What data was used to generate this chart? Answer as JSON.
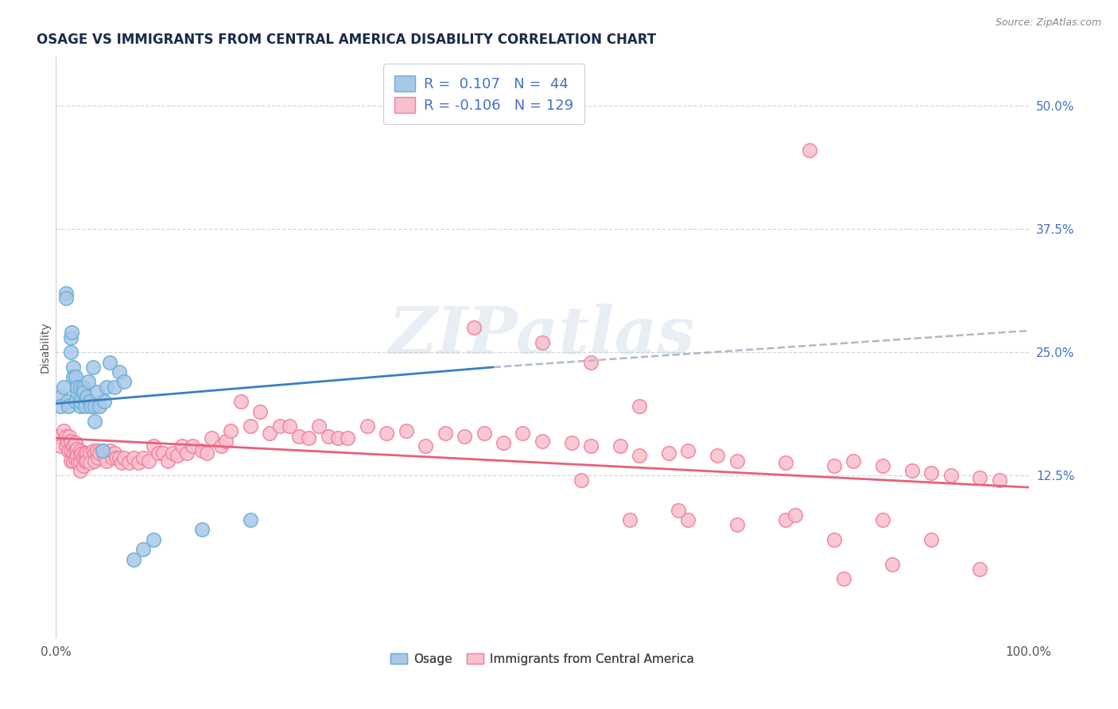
{
  "title": "OSAGE VS IMMIGRANTS FROM CENTRAL AMERICA DISABILITY CORRELATION CHART",
  "source_text": "Source: ZipAtlas.com",
  "ylabel": "Disability",
  "watermark_text": "ZIPatlas",
  "r1_label": "R =  0.107   N =  44",
  "r2_label": "R = -0.106   N = 129",
  "osage_legend": "Osage",
  "immigrant_legend": "Immigrants from Central America",
  "osage_color": "#a8c8e8",
  "osage_edge_color": "#6aaed6",
  "immigrant_color": "#f8c0cc",
  "immigrant_edge_color": "#f080a0",
  "osage_line_color": "#3a7fc1",
  "immigrant_line_color": "#e8607a",
  "dashed_line_color": "#b0b8c8",
  "grid_color": "#d0d8e0",
  "ytick_color": "#4472c4",
  "background_color": "#ffffff",
  "xlim": [
    0.0,
    1.0
  ],
  "ylim": [
    -0.04,
    0.55
  ],
  "ytick_values": [
    0.125,
    0.25,
    0.375,
    0.5
  ],
  "ytick_labels": [
    "12.5%",
    "25.0%",
    "37.5%",
    "50.0%"
  ],
  "xtick_values": [
    0.0,
    1.0
  ],
  "xtick_labels": [
    "0.0%",
    "100.0%"
  ],
  "osage_trend": [
    0.0,
    0.45
  ],
  "osage_trend_y": [
    0.198,
    0.235
  ],
  "dashed_trend": [
    0.45,
    1.0
  ],
  "dashed_trend_y": [
    0.235,
    0.272
  ],
  "immigrant_trend": [
    0.0,
    1.0
  ],
  "immigrant_trend_y": [
    0.163,
    0.113
  ],
  "title_fontsize": 12,
  "source_fontsize": 9,
  "tick_fontsize": 11,
  "legend_fontsize": 13,
  "ylabel_fontsize": 10,
  "watermark_fontsize": 60,
  "watermark_color": "#c0d0e4",
  "watermark_alpha": 0.35,
  "osage_x": [
    0.005,
    0.005,
    0.008,
    0.01,
    0.01,
    0.012,
    0.013,
    0.015,
    0.015,
    0.016,
    0.018,
    0.018,
    0.02,
    0.02,
    0.022,
    0.022,
    0.025,
    0.025,
    0.025,
    0.028,
    0.028,
    0.03,
    0.03,
    0.032,
    0.033,
    0.035,
    0.036,
    0.038,
    0.04,
    0.04,
    0.042,
    0.045,
    0.048,
    0.05,
    0.052,
    0.055,
    0.06,
    0.065,
    0.07,
    0.08,
    0.09,
    0.1,
    0.15,
    0.2
  ],
  "osage_y": [
    0.205,
    0.195,
    0.215,
    0.31,
    0.305,
    0.2,
    0.195,
    0.265,
    0.25,
    0.27,
    0.235,
    0.225,
    0.2,
    0.225,
    0.21,
    0.215,
    0.195,
    0.2,
    0.215,
    0.215,
    0.21,
    0.2,
    0.195,
    0.205,
    0.22,
    0.2,
    0.195,
    0.235,
    0.18,
    0.195,
    0.21,
    0.195,
    0.15,
    0.2,
    0.215,
    0.24,
    0.215,
    0.23,
    0.22,
    0.04,
    0.05,
    0.06,
    0.07,
    0.08
  ],
  "immigrant_x": [
    0.003,
    0.005,
    0.008,
    0.01,
    0.01,
    0.012,
    0.013,
    0.014,
    0.015,
    0.015,
    0.015,
    0.018,
    0.018,
    0.018,
    0.02,
    0.02,
    0.02,
    0.022,
    0.022,
    0.023,
    0.025,
    0.025,
    0.025,
    0.025,
    0.027,
    0.028,
    0.028,
    0.03,
    0.03,
    0.032,
    0.032,
    0.035,
    0.035,
    0.038,
    0.04,
    0.04,
    0.042,
    0.043,
    0.045,
    0.048,
    0.05,
    0.052,
    0.055,
    0.058,
    0.06,
    0.062,
    0.065,
    0.068,
    0.07,
    0.075,
    0.08,
    0.085,
    0.09,
    0.095,
    0.1,
    0.105,
    0.11,
    0.115,
    0.12,
    0.125,
    0.13,
    0.135,
    0.14,
    0.15,
    0.155,
    0.16,
    0.17,
    0.175,
    0.18,
    0.19,
    0.2,
    0.21,
    0.22,
    0.23,
    0.24,
    0.25,
    0.26,
    0.27,
    0.28,
    0.29,
    0.3,
    0.32,
    0.34,
    0.36,
    0.38,
    0.4,
    0.42,
    0.44,
    0.46,
    0.48,
    0.5,
    0.53,
    0.55,
    0.58,
    0.6,
    0.63,
    0.65,
    0.68,
    0.7,
    0.75,
    0.8,
    0.82,
    0.85,
    0.88,
    0.9,
    0.92,
    0.95,
    0.97,
    0.43,
    0.5,
    0.55,
    0.6,
    0.65,
    0.7,
    0.75,
    0.8,
    0.85,
    0.9,
    0.95,
    0.76,
    0.81,
    0.86,
    0.54,
    0.59,
    0.64
  ],
  "immigrant_y": [
    0.165,
    0.155,
    0.17,
    0.165,
    0.155,
    0.16,
    0.15,
    0.165,
    0.16,
    0.15,
    0.14,
    0.155,
    0.148,
    0.14,
    0.158,
    0.15,
    0.142,
    0.152,
    0.145,
    0.138,
    0.15,
    0.145,
    0.138,
    0.13,
    0.148,
    0.143,
    0.135,
    0.148,
    0.14,
    0.148,
    0.14,
    0.148,
    0.138,
    0.15,
    0.148,
    0.14,
    0.15,
    0.143,
    0.148,
    0.15,
    0.145,
    0.14,
    0.15,
    0.143,
    0.148,
    0.143,
    0.143,
    0.138,
    0.143,
    0.138,
    0.143,
    0.138,
    0.143,
    0.14,
    0.155,
    0.148,
    0.148,
    0.14,
    0.148,
    0.145,
    0.155,
    0.148,
    0.155,
    0.15,
    0.148,
    0.163,
    0.155,
    0.16,
    0.17,
    0.2,
    0.175,
    0.19,
    0.168,
    0.175,
    0.175,
    0.165,
    0.163,
    0.175,
    0.165,
    0.163,
    0.163,
    0.175,
    0.168,
    0.17,
    0.155,
    0.168,
    0.165,
    0.168,
    0.158,
    0.168,
    0.16,
    0.158,
    0.155,
    0.155,
    0.145,
    0.148,
    0.15,
    0.145,
    0.14,
    0.138,
    0.135,
    0.14,
    0.135,
    0.13,
    0.128,
    0.125,
    0.123,
    0.12,
    0.275,
    0.26,
    0.24,
    0.195,
    0.08,
    0.075,
    0.08,
    0.06,
    0.08,
    0.06,
    0.03,
    0.085,
    0.02,
    0.035,
    0.12,
    0.08,
    0.09
  ],
  "immigrant_outlier_x": [
    0.775
  ],
  "immigrant_outlier_y": [
    0.455
  ]
}
